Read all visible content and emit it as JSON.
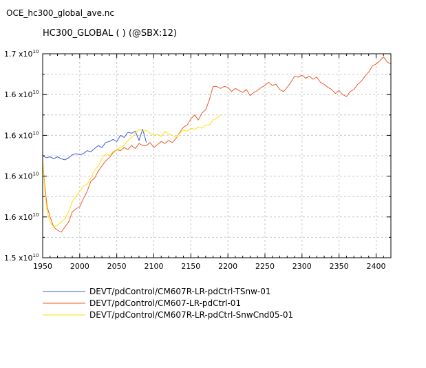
{
  "file_title": "OCE_hc300_global_ave.nc",
  "chart_data": {
    "type": "line",
    "title": "HC300_GLOBAL ( ) (@SBX:12)",
    "xlabel": "",
    "ylabel": "",
    "xlim": [
      1950,
      2420
    ],
    "ylim": [
      1.5,
      1.7
    ],
    "x_ticks": [
      1950,
      2000,
      2050,
      2100,
      2150,
      2200,
      2250,
      2300,
      2350,
      2400
    ],
    "y_ticks": [
      {
        "value": 1.5,
        "mantissa": "1.5 x10",
        "exponent": "10"
      },
      {
        "value": 1.54,
        "mantissa": "1.6 x10",
        "exponent": "10"
      },
      {
        "value": 1.58,
        "mantissa": "1.6 x10",
        "exponent": "10"
      },
      {
        "value": 1.62,
        "mantissa": "1.6 x10",
        "exponent": "10"
      },
      {
        "value": 1.66,
        "mantissa": "1.6 x10",
        "exponent": "10"
      },
      {
        "value": 1.7,
        "mantissa": "1.7 x10",
        "exponent": "10"
      }
    ],
    "grid": true,
    "legend_position": "bottom-left",
    "series": [
      {
        "name": "DEVT/pdControl/CM607R-LR-pdCtrl-TSnw-01",
        "color": "#3b5bdb",
        "x": [
          1950,
          1955,
          1960,
          1965,
          1970,
          1975,
          1980,
          1985,
          1990,
          1995,
          2000,
          2005,
          2010,
          2015,
          2020,
          2025,
          2030,
          2035,
          2040,
          2045,
          2050,
          2055,
          2060,
          2065,
          2070,
          2075,
          2080,
          2085,
          2090
        ],
        "y": [
          1.6,
          1.598,
          1.599,
          1.597,
          1.599,
          1.597,
          1.596,
          1.598,
          1.601,
          1.602,
          1.601,
          1.602,
          1.605,
          1.604,
          1.607,
          1.61,
          1.608,
          1.613,
          1.614,
          1.616,
          1.614,
          1.62,
          1.618,
          1.623,
          1.622,
          1.624,
          1.615,
          1.626,
          1.613
        ]
      },
      {
        "name": "DEVT/pdControl/CM607-LR-pdCtrl-01",
        "color": "#ef5a28",
        "x": [
          1950,
          1953,
          1956,
          1960,
          1965,
          1970,
          1975,
          1980,
          1985,
          1990,
          1995,
          2000,
          2005,
          2010,
          2015,
          2020,
          2025,
          2030,
          2035,
          2040,
          2045,
          2050,
          2055,
          2060,
          2065,
          2070,
          2075,
          2080,
          2085,
          2090,
          2095,
          2100,
          2105,
          2110,
          2115,
          2120,
          2125,
          2130,
          2135,
          2140,
          2145,
          2150,
          2155,
          2160,
          2165,
          2170,
          2175,
          2180,
          2185,
          2190,
          2195,
          2200,
          2205,
          2210,
          2215,
          2220,
          2225,
          2230,
          2235,
          2240,
          2245,
          2250,
          2255,
          2260,
          2265,
          2270,
          2275,
          2280,
          2285,
          2290,
          2295,
          2300,
          2305,
          2310,
          2315,
          2320,
          2325,
          2330,
          2335,
          2340,
          2345,
          2350,
          2355,
          2360,
          2365,
          2370,
          2375,
          2380,
          2385,
          2390,
          2395,
          2400,
          2405,
          2410,
          2415,
          2420
        ],
        "y": [
          1.595,
          1.57,
          1.55,
          1.54,
          1.53,
          1.527,
          1.525,
          1.53,
          1.535,
          1.545,
          1.548,
          1.55,
          1.558,
          1.565,
          1.575,
          1.578,
          1.585,
          1.59,
          1.595,
          1.598,
          1.603,
          1.606,
          1.605,
          1.608,
          1.606,
          1.61,
          1.607,
          1.612,
          1.61,
          1.61,
          1.613,
          1.608,
          1.611,
          1.614,
          1.612,
          1.615,
          1.613,
          1.617,
          1.623,
          1.628,
          1.63,
          1.636,
          1.64,
          1.635,
          1.642,
          1.645,
          1.655,
          1.668,
          1.668,
          1.666,
          1.668,
          1.667,
          1.663,
          1.666,
          1.664,
          1.662,
          1.665,
          1.659,
          1.662,
          1.664,
          1.667,
          1.669,
          1.672,
          1.669,
          1.67,
          1.665,
          1.663,
          1.667,
          1.672,
          1.678,
          1.677,
          1.679,
          1.676,
          1.678,
          1.675,
          1.677,
          1.672,
          1.67,
          1.667,
          1.665,
          1.661,
          1.664,
          1.66,
          1.658,
          1.663,
          1.665,
          1.67,
          1.673,
          1.678,
          1.682,
          1.688,
          1.69,
          1.693,
          1.697,
          1.692,
          1.69
        ]
      },
      {
        "name": "DEVT/pdControl/CM607R-LR-pdCtrl-SnwCnd05-01",
        "color": "#ffe100",
        "x": [
          1950,
          1953,
          1956,
          1960,
          1965,
          1970,
          1975,
          1980,
          1985,
          1990,
          1995,
          2000,
          2005,
          2010,
          2015,
          2020,
          2025,
          2030,
          2035,
          2040,
          2045,
          2050,
          2055,
          2060,
          2065,
          2070,
          2075,
          2080,
          2085,
          2090,
          2095,
          2100,
          2105,
          2110,
          2115,
          2120,
          2125,
          2130,
          2135,
          2140,
          2145,
          2150,
          2155,
          2160,
          2165,
          2170,
          2175,
          2180,
          2185,
          2190
        ],
        "y": [
          1.597,
          1.565,
          1.545,
          1.535,
          1.53,
          1.532,
          1.535,
          1.538,
          1.545,
          1.555,
          1.56,
          1.565,
          1.57,
          1.572,
          1.578,
          1.586,
          1.59,
          1.597,
          1.602,
          1.6,
          1.604,
          1.606,
          1.608,
          1.61,
          1.615,
          1.618,
          1.622,
          1.626,
          1.624,
          1.625,
          1.622,
          1.62,
          1.621,
          1.619,
          1.624,
          1.621,
          1.62,
          1.618,
          1.622,
          1.625,
          1.624,
          1.627,
          1.626,
          1.628,
          1.627,
          1.63,
          1.63,
          1.635,
          1.637,
          1.64
        ]
      }
    ]
  }
}
